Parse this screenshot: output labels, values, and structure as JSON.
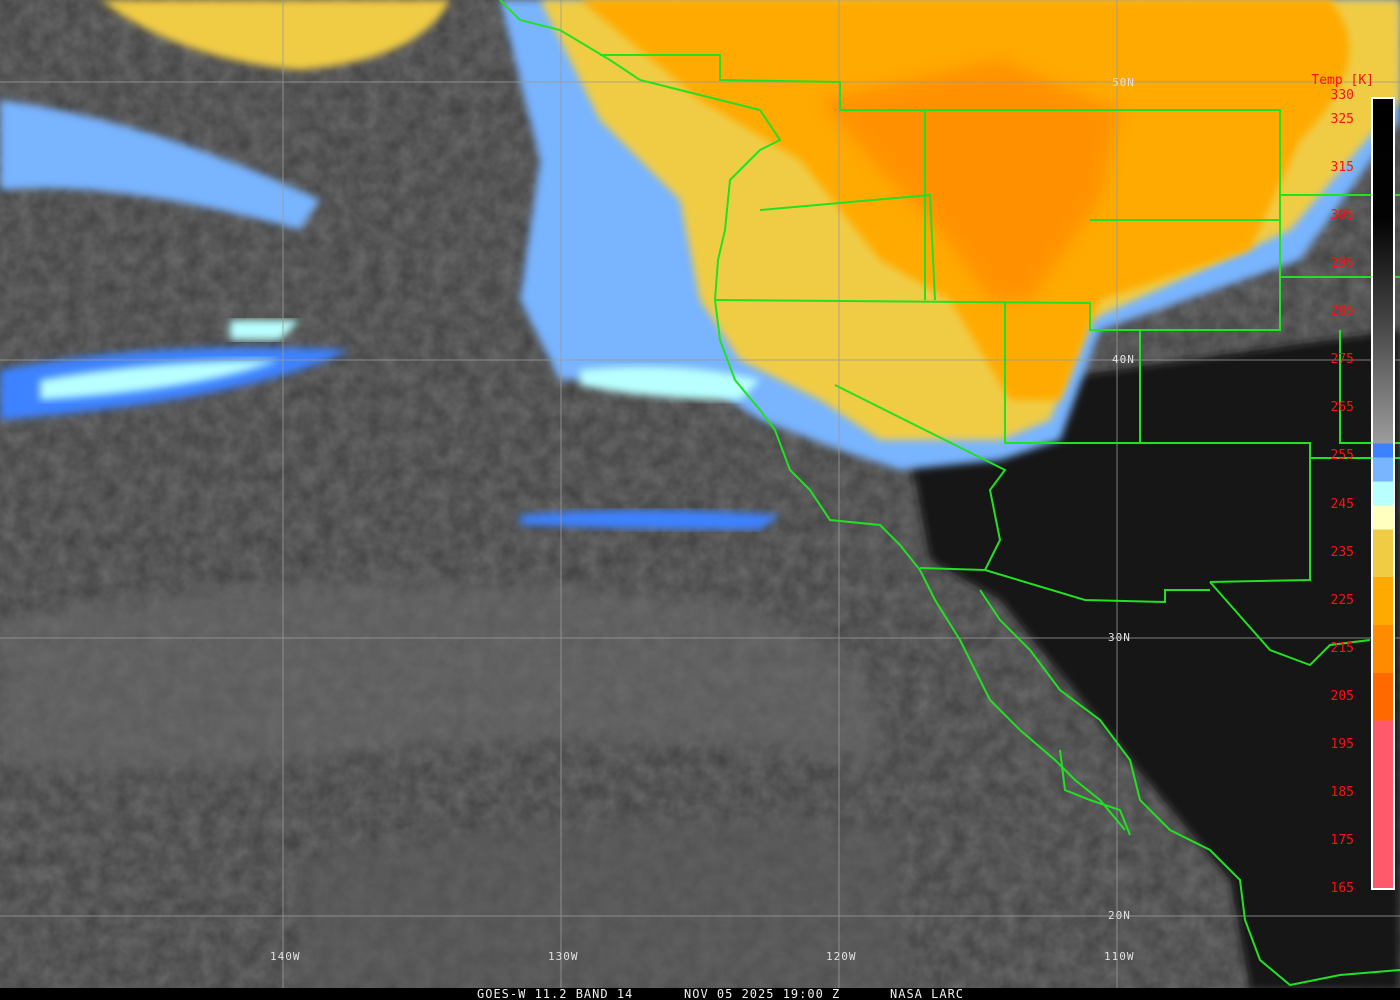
{
  "map": {
    "latitude_labels": [
      "50N",
      "40N",
      "30N",
      "20N"
    ],
    "longitude_labels": [
      "140W",
      "130W",
      "120W",
      "110W"
    ],
    "border_color": "#22e022",
    "grid_color": "#9a9a9a"
  },
  "colorbar": {
    "title": "Temp [K]",
    "ticks": [
      "330",
      "325",
      "315",
      "305",
      "295",
      "285",
      "275",
      "265",
      "255",
      "245",
      "235",
      "225",
      "215",
      "205",
      "195",
      "185",
      "175",
      "165"
    ],
    "label_color": "#ff1010",
    "segments": [
      {
        "from": 165,
        "to": 200,
        "color": "#ff5a6a"
      },
      {
        "from": 200,
        "to": 210,
        "color": "#ff6a00"
      },
      {
        "from": 210,
        "to": 220,
        "color": "#ff8c00"
      },
      {
        "from": 220,
        "to": 230,
        "color": "#ffaa00"
      },
      {
        "from": 230,
        "to": 240,
        "color": "#f0cc44"
      },
      {
        "from": 240,
        "to": 245,
        "color": "#ffffc0"
      },
      {
        "from": 245,
        "to": 250,
        "color": "#b8ffff"
      },
      {
        "from": 250,
        "to": 255,
        "color": "#78b4ff"
      },
      {
        "from": 255,
        "to": 258,
        "color": "#3c82ff"
      },
      {
        "from": 258,
        "to": 330,
        "color": "gray-to-black"
      }
    ]
  },
  "footer": {
    "satellite": "GOES-W 11.2 BAND 14",
    "datetime": "NOV 05 2025 19:00 Z",
    "credit": "NASA LARC"
  }
}
